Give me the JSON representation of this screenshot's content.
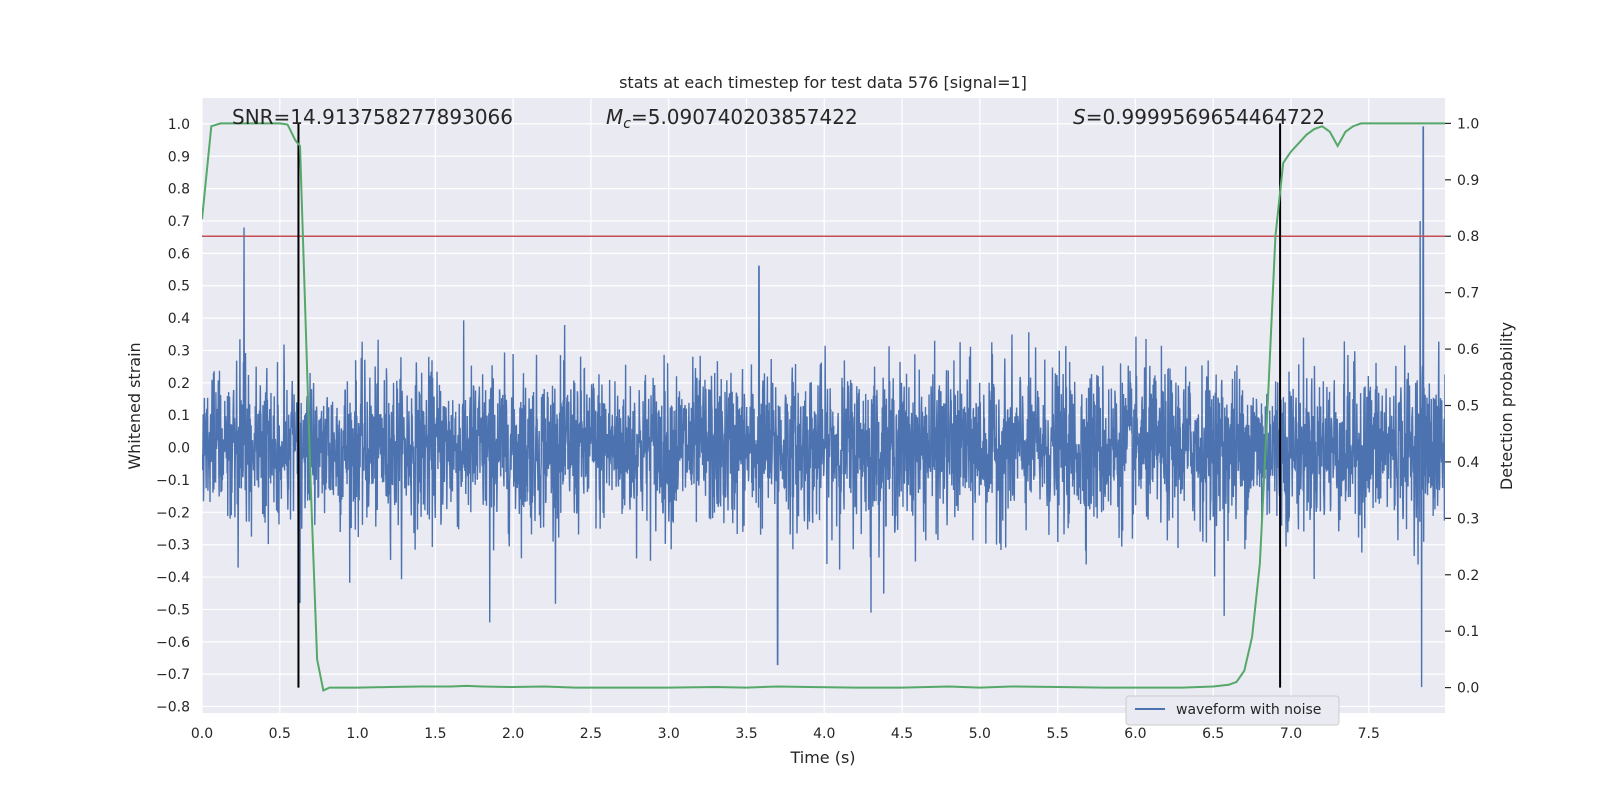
{
  "chart_data": {
    "type": "line",
    "title": "stats at each timestep for test data 576 [signal=1]",
    "xlabel": "Time (s)",
    "ylabel_left": "Whitened strain",
    "ylabel_right": "Detection probability",
    "xlim": [
      0.0,
      7.99
    ],
    "ylim_left": [
      -0.82,
      1.08
    ],
    "ylim_right": [
      -0.045,
      1.045
    ],
    "x_ticks": [
      "0.0",
      "0.5",
      "1.0",
      "1.5",
      "2.0",
      "2.5",
      "3.0",
      "3.5",
      "4.0",
      "4.5",
      "5.0",
      "5.5",
      "6.0",
      "6.5",
      "7.0",
      "7.5"
    ],
    "y_left_ticks": [
      "1.0",
      "0.9",
      "0.8",
      "0.7",
      "0.6",
      "0.5",
      "0.4",
      "0.3",
      "0.2",
      "0.1",
      "0.0",
      "−0.1",
      "−0.2",
      "−0.3",
      "−0.4",
      "−0.5",
      "−0.6",
      "−0.7",
      "−0.8"
    ],
    "y_right_ticks": [
      "1.0",
      "0.9",
      "0.8",
      "0.7",
      "0.6",
      "0.5",
      "0.4",
      "0.3",
      "0.2",
      "0.1",
      "0.0"
    ],
    "grid": true,
    "legend": {
      "position": "lower-right",
      "entries": [
        "waveform with noise"
      ]
    },
    "annotations": {
      "snr": "SNR=14.913758277893066",
      "mc_symbol": "M",
      "mc_sub": "c",
      "mc_value": "=5.090740203857422",
      "s_symbol": "S",
      "s_value": "=0.9999569654464722"
    },
    "threshold_line": {
      "y_right": 0.8,
      "color": "#c44e52"
    },
    "vertical_markers_x": [
      0.62,
      6.93
    ],
    "waveform": {
      "name": "waveform with noise",
      "color": "#4c72b0",
      "noise_sigma": 0.12,
      "peaks": [
        {
          "x": 0.27,
          "y": 0.68
        },
        {
          "x": 0.63,
          "y": -0.48
        },
        {
          "x": 1.85,
          "y": -0.54
        },
        {
          "x": 3.58,
          "y": 0.56
        },
        {
          "x": 3.7,
          "y": -0.67
        },
        {
          "x": 4.3,
          "y": -0.51
        },
        {
          "x": 6.57,
          "y": -0.52
        },
        {
          "x": 7.85,
          "y": 0.99
        },
        {
          "x": 7.84,
          "y": -0.74
        },
        {
          "x": 7.83,
          "y": 0.7
        }
      ]
    },
    "detection_probability": {
      "name": "detection probability",
      "color": "#55a868",
      "x": [
        0.0,
        0.06,
        0.12,
        0.2,
        0.3,
        0.4,
        0.5,
        0.55,
        0.6,
        0.63,
        0.66,
        0.7,
        0.74,
        0.78,
        0.82,
        0.9,
        1.0,
        1.2,
        1.4,
        1.6,
        1.7,
        1.8,
        2.0,
        2.2,
        2.4,
        2.5,
        2.8,
        3.0,
        3.3,
        3.5,
        3.7,
        3.9,
        4.2,
        4.5,
        4.8,
        5.0,
        5.2,
        5.5,
        5.8,
        6.0,
        6.3,
        6.5,
        6.6,
        6.65,
        6.7,
        6.75,
        6.8,
        6.85,
        6.9,
        6.95,
        7.0,
        7.05,
        7.1,
        7.15,
        7.2,
        7.25,
        7.3,
        7.35,
        7.4,
        7.45,
        7.5,
        7.6,
        7.7,
        7.8,
        7.99
      ],
      "y": [
        0.83,
        0.995,
        1.0,
        1.0,
        1.0,
        1.0,
        1.0,
        0.998,
        0.97,
        0.96,
        0.7,
        0.35,
        0.05,
        -0.005,
        0.0,
        0.0,
        0.0,
        0.001,
        0.002,
        0.002,
        0.003,
        0.002,
        0.001,
        0.002,
        0.0,
        0.0,
        0.0,
        0.0,
        0.001,
        0.0,
        0.002,
        0.001,
        0.0,
        0.0,
        0.002,
        0.0,
        0.002,
        0.001,
        0.0,
        0.0,
        0.0,
        0.002,
        0.005,
        0.01,
        0.03,
        0.09,
        0.22,
        0.5,
        0.8,
        0.93,
        0.95,
        0.965,
        0.98,
        0.99,
        0.995,
        0.985,
        0.96,
        0.985,
        0.995,
        1.0,
        1.0,
        1.0,
        1.0,
        1.0,
        1.0
      ]
    }
  }
}
